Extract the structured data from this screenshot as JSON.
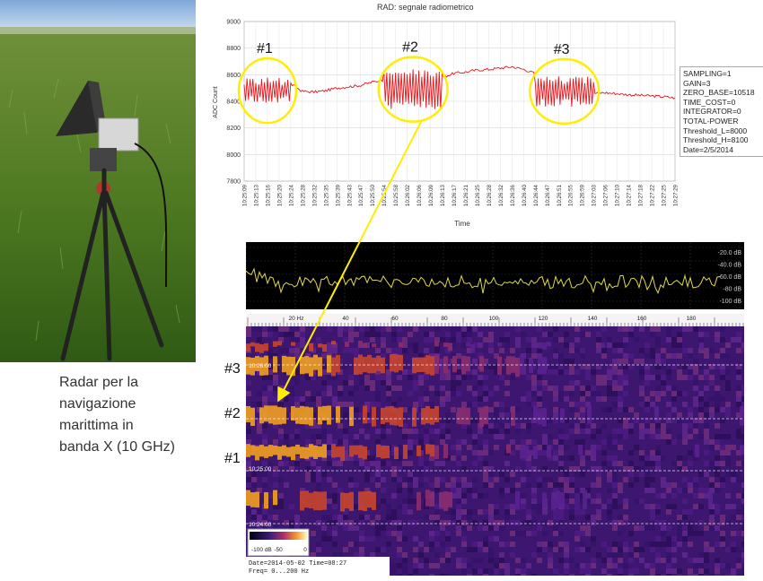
{
  "caption": "Radar per la\nnavigazione\nmarittima in\nbanda X (10 GHz)",
  "rad_chart": {
    "title": "RAD: segnale radiometrico",
    "xlabel": "Time",
    "ylabel": "ADC Count",
    "yticks": [
      "7800",
      "8000",
      "8200",
      "8400",
      "8600",
      "8800",
      "9000"
    ],
    "xticks": [
      "10:25:09",
      "10:25:13",
      "10:25:16",
      "10:25:20",
      "10:25:24",
      "10:25:28",
      "10:25:32",
      "10:25:35",
      "10:25:39",
      "10:25:43",
      "10:25:47",
      "10:25:50",
      "10:25:54",
      "10:25:58",
      "10:26:02",
      "10:26:06",
      "10:26:09",
      "10:26:13",
      "10:26:17",
      "10:26:21",
      "10:26:25",
      "10:26:28",
      "10:26:32",
      "10:26:36",
      "10:26:40",
      "10:26:44",
      "10:26:47",
      "10:26:51",
      "10:26:55",
      "10:26:59",
      "10:27:03",
      "10:27:06",
      "10:27:10",
      "10:27:14",
      "10:27:18",
      "10:27:22",
      "10:27:25",
      "10:27:29"
    ],
    "annotations": [
      "#1",
      "#2",
      "#3"
    ],
    "line_color": "#e8151b",
    "highlight_color": "#ffee00"
  },
  "params": [
    "SAMPLING=1",
    "GAIN=3",
    "ZERO_BASE=10518",
    "TIME_COST=0",
    "INTEGRATOR=0",
    "TOTAL-POWER",
    "Threshold_L=8000",
    "Threshold_H=8100",
    "Date=2/5/2014"
  ],
  "spectrum": {
    "db_labels": [
      "-20.0 dB",
      "-40.0 dB",
      "-60.0 dB",
      "-80 dB",
      "-100 dB"
    ],
    "freq_labels": [
      "20 Hz",
      "40",
      "60",
      "80",
      "100",
      "120",
      "140",
      "160",
      "180"
    ],
    "trace_color": "#e0d94c"
  },
  "waterfall": {
    "time_labels": [
      "10:26:00",
      "10:25:00",
      "10:24:00"
    ],
    "colorbar_labels": [
      "-100 dB",
      "-50",
      "0"
    ],
    "info": [
      "Date=2014-05-02 Time=08:27",
      "Freq= 0...200 Hz"
    ]
  },
  "side_labels": [
    "#3",
    "#2",
    "#1"
  ],
  "chart_data": {
    "type": "line",
    "title": "RAD: segnale radiometrico",
    "xlabel": "Time",
    "ylabel": "ADC Count",
    "ylim": [
      7800,
      9000
    ],
    "x": [
      "10:25:09",
      "10:25:13",
      "10:25:16",
      "10:25:20",
      "10:25:24",
      "10:25:28",
      "10:25:32",
      "10:25:35",
      "10:25:39",
      "10:25:43",
      "10:25:47",
      "10:25:50",
      "10:25:54",
      "10:25:58",
      "10:26:02",
      "10:26:06",
      "10:26:09",
      "10:26:13",
      "10:26:17",
      "10:26:21",
      "10:26:25",
      "10:26:28",
      "10:26:32",
      "10:26:36",
      "10:26:40",
      "10:26:44",
      "10:26:47",
      "10:26:51",
      "10:26:55",
      "10:26:59",
      "10:27:03",
      "10:27:06",
      "10:27:10",
      "10:27:14",
      "10:27:18",
      "10:27:22",
      "10:27:25",
      "10:27:29"
    ],
    "values": [
      8420,
      8470,
      8490,
      8480,
      8530,
      8475,
      8470,
      8480,
      8500,
      8510,
      8520,
      8545,
      8560,
      8530,
      8510,
      8500,
      8550,
      8580,
      8610,
      8620,
      8635,
      8640,
      8650,
      8660,
      8640,
      8610,
      8560,
      8540,
      8500,
      8470,
      8460,
      8465,
      8458,
      8450,
      8445,
      8440,
      8435,
      8425
    ],
    "bursts": [
      {
        "label": "#1",
        "x_start": "10:25:09",
        "x_end": "10:25:24",
        "min": 8380,
        "max": 8580
      },
      {
        "label": "#2",
        "x_start": "10:25:54",
        "x_end": "10:26:13",
        "min": 8340,
        "max": 8640
      },
      {
        "label": "#3",
        "x_start": "10:26:44",
        "x_end": "10:27:03",
        "min": 8360,
        "max": 8590
      }
    ],
    "grid": true
  }
}
